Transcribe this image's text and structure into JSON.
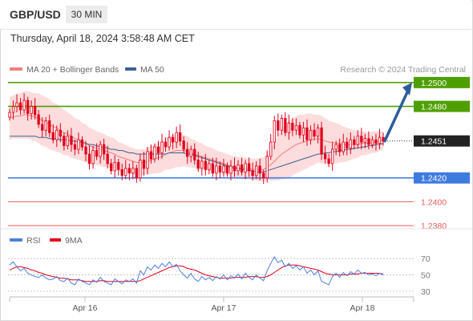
{
  "header": {
    "symbol": "GBP/USD",
    "timeframe": "30 MIN"
  },
  "datetime": "Thursday, April 18, 2024 3:58:48 AM CET",
  "legend": {
    "ma20": "MA 20 + Bollinger Bands",
    "ma50": "MA 50",
    "copyright": "Research © 2024 Trading Central"
  },
  "colors": {
    "candle": "#e0001b",
    "ma20": "#f07f7f",
    "ma50": "#3f5f96",
    "band_fill": "#fcdcdc",
    "resistance": "#4f9f00",
    "pivot": "#3e7be0",
    "support": "#f05a5a",
    "arrow": "#2c5d9a",
    "rsi": "#4f7fdf",
    "rsi_ma": "#e0001b"
  },
  "chart_data": [
    {
      "type": "candlestick",
      "ylim": [
        1.237,
        1.251
      ],
      "x_ticks": [
        "Apr 16",
        "Apr 17",
        "Apr 18"
      ],
      "levels": [
        {
          "value": 1.25,
          "label": "1.2500",
          "kind": "resistance"
        },
        {
          "value": 1.248,
          "label": "1.2480",
          "kind": "resistance"
        },
        {
          "value": 1.242,
          "label": "1.2420",
          "kind": "pivot"
        },
        {
          "value": 1.24,
          "label": "1.2400",
          "kind": "support"
        },
        {
          "value": 1.238,
          "label": "1.2380",
          "kind": "support"
        }
      ],
      "last_price": {
        "value": 1.2451,
        "label": "1.2451"
      },
      "projection": {
        "from": 1.2451,
        "to": 1.25
      },
      "legend": [
        "MA 20 + Bollinger Bands",
        "MA 50"
      ],
      "closes": [
        1.2475,
        1.248,
        1.2483,
        1.2477,
        1.2485,
        1.2474,
        1.248,
        1.2473,
        1.2465,
        1.246,
        1.2468,
        1.2458,
        1.2452,
        1.246,
        1.2455,
        1.2447,
        1.2455,
        1.2448,
        1.2444,
        1.2452,
        1.2446,
        1.244,
        1.2432,
        1.2443,
        1.2438,
        1.2448,
        1.244,
        1.2432,
        1.2426,
        1.2433,
        1.2427,
        1.2422,
        1.2428,
        1.2424,
        1.2428,
        1.242,
        1.2435,
        1.2428,
        1.2442,
        1.2436,
        1.2446,
        1.2441,
        1.245,
        1.2446,
        1.2454,
        1.245,
        1.2458,
        1.2451,
        1.2444,
        1.2438,
        1.2444,
        1.2435,
        1.2428,
        1.2434,
        1.2427,
        1.2432,
        1.2424,
        1.243,
        1.2425,
        1.243,
        1.2424,
        1.243,
        1.2426,
        1.2431,
        1.2425,
        1.2432,
        1.2426,
        1.2422,
        1.243,
        1.2424,
        1.242,
        1.2438,
        1.245,
        1.2468,
        1.246,
        1.247,
        1.2458,
        1.2466,
        1.246,
        1.2464,
        1.2456,
        1.2462,
        1.2452,
        1.246,
        1.2455,
        1.2462,
        1.244,
        1.2436,
        1.2432,
        1.2444,
        1.2448,
        1.2442,
        1.245,
        1.2445,
        1.2452,
        1.2448,
        1.2455,
        1.245,
        1.2453,
        1.2448,
        1.2452,
        1.2449,
        1.2454,
        1.2451
      ],
      "ma20": [
        1.247,
        1.2471,
        1.2472,
        1.2472,
        1.2473,
        1.2473,
        1.2472,
        1.2471,
        1.247,
        1.2468,
        1.2467,
        1.2465,
        1.2463,
        1.2462,
        1.246,
        1.2458,
        1.2457,
        1.2455,
        1.2453,
        1.2452,
        1.245,
        1.2449,
        1.2447,
        1.2446,
        1.2445,
        1.2444,
        1.2443,
        1.2442,
        1.2441,
        1.244,
        1.2438,
        1.2437,
        1.2436,
        1.2435,
        1.2434,
        1.2433,
        1.2433,
        1.2433,
        1.2434,
        1.2435,
        1.2436,
        1.2437,
        1.2438,
        1.244,
        1.2441,
        1.2442,
        1.2443,
        1.2443,
        1.2443,
        1.2442,
        1.2441,
        1.244,
        1.2439,
        1.2438,
        1.2437,
        1.2436,
        1.2435,
        1.2434,
        1.2433,
        1.2432,
        1.2431,
        1.243,
        1.2429,
        1.2429,
        1.2428,
        1.2428,
        1.2428,
        1.2427,
        1.2427,
        1.2427,
        1.2427,
        1.2429,
        1.2431,
        1.2434,
        1.2437,
        1.244,
        1.2442,
        1.2444,
        1.2446,
        1.2448,
        1.2449,
        1.245,
        1.2451,
        1.2452,
        1.2452,
        1.2453,
        1.2452,
        1.2451,
        1.245,
        1.245,
        1.2449,
        1.2449,
        1.2448,
        1.2448,
        1.2448,
        1.2448,
        1.2448,
        1.2449,
        1.2449,
        1.2449,
        1.245,
        1.245,
        1.2451,
        1.2451
      ],
      "ma50": [
        1.2455,
        1.2455,
        1.2455,
        1.2455,
        1.2455,
        1.2455,
        1.2455,
        1.2455,
        1.2454,
        1.2454,
        1.2454,
        1.2453,
        1.2453,
        1.2453,
        1.2452,
        1.2452,
        1.2452,
        1.2451,
        1.2451,
        1.245,
        1.245,
        1.2449,
        1.2448,
        1.2448,
        1.2447,
        1.2446,
        1.2446,
        1.2445,
        1.2444,
        1.2444,
        1.2443,
        1.2443,
        1.2442,
        1.2441,
        1.2441,
        1.244,
        1.244,
        1.244,
        1.244,
        1.244,
        1.244,
        1.244,
        1.244,
        1.244,
        1.2441,
        1.2441,
        1.2441,
        1.2441,
        1.2441,
        1.244,
        1.244,
        1.2439,
        1.2438,
        1.2437,
        1.2436,
        1.2435,
        1.2434,
        1.2433,
        1.2432,
        1.2431,
        1.243,
        1.2429,
        1.2428,
        1.2428,
        1.2427,
        1.2427,
        1.2426,
        1.2426,
        1.2425,
        1.2425,
        1.2425,
        1.2426,
        1.2427,
        1.2428,
        1.2429,
        1.243,
        1.2431,
        1.2432,
        1.2433,
        1.2434,
        1.2435,
        1.2436,
        1.2437,
        1.2438,
        1.2439,
        1.244,
        1.244,
        1.2441,
        1.2441,
        1.2442,
        1.2442,
        1.2443,
        1.2443,
        1.2444,
        1.2444,
        1.2445,
        1.2445,
        1.2446,
        1.2446,
        1.2447,
        1.2447,
        1.2448,
        1.2448,
        1.2449
      ],
      "band_width": [
        0.0018,
        0.0018,
        0.0019,
        0.0019,
        0.002,
        0.002,
        0.002,
        0.002,
        0.0021,
        0.0021,
        0.0021,
        0.0021,
        0.002,
        0.002,
        0.0019,
        0.0019,
        0.0018,
        0.0018,
        0.0017,
        0.0017,
        0.0016,
        0.0016,
        0.0015,
        0.0015,
        0.0014,
        0.0014,
        0.0014,
        0.0013,
        0.0013,
        0.0013,
        0.0012,
        0.0012,
        0.0012,
        0.0011,
        0.0011,
        0.0011,
        0.0011,
        0.0011,
        0.0011,
        0.0012,
        0.0012,
        0.0013,
        0.0013,
        0.0013,
        0.0014,
        0.0014,
        0.0014,
        0.0014,
        0.0013,
        0.0013,
        0.0012,
        0.0012,
        0.0011,
        0.0011,
        0.001,
        0.001,
        0.001,
        0.0009,
        0.0009,
        0.0009,
        0.0009,
        0.0009,
        0.0009,
        0.0009,
        0.0009,
        0.0009,
        0.0009,
        0.0009,
        0.0009,
        0.001,
        0.001,
        0.0011,
        0.0013,
        0.0016,
        0.0019,
        0.0021,
        0.0023,
        0.0024,
        0.0024,
        0.0024,
        0.0024,
        0.0023,
        0.0023,
        0.0022,
        0.0021,
        0.002,
        0.002,
        0.0019,
        0.0018,
        0.0017,
        0.0017,
        0.0016,
        0.0015,
        0.0014,
        0.0013,
        0.0012,
        0.0011,
        0.001,
        0.001,
        0.0009,
        0.0009,
        0.0009,
        0.0008,
        0.0008
      ]
    },
    {
      "type": "line",
      "legend": [
        "RSI",
        "9MA"
      ],
      "ylim": [
        25,
        80
      ],
      "y_ticks": [
        30,
        50,
        70
      ],
      "rsi": [
        62,
        66,
        60,
        55,
        58,
        52,
        50,
        48,
        47,
        50,
        46,
        44,
        45,
        48,
        43,
        42,
        46,
        40,
        38,
        45,
        42,
        40,
        38,
        44,
        41,
        47,
        42,
        40,
        38,
        45,
        42,
        39,
        44,
        42,
        45,
        40,
        55,
        50,
        60,
        56,
        62,
        58,
        64,
        60,
        66,
        60,
        63,
        55,
        50,
        46,
        52,
        45,
        42,
        48,
        44,
        47,
        43,
        48,
        45,
        50,
        44,
        49,
        46,
        51,
        45,
        52,
        47,
        44,
        50,
        46,
        43,
        55,
        64,
        72,
        65,
        68,
        60,
        64,
        58,
        61,
        56,
        60,
        52,
        56,
        50,
        55,
        42,
        40,
        38,
        48,
        52,
        47,
        53,
        49,
        54,
        51,
        56,
        52,
        53,
        50,
        51,
        49,
        52,
        50
      ],
      "ma9": [
        56,
        58,
        60,
        60,
        59,
        58,
        56,
        55,
        53,
        52,
        50,
        49,
        48,
        47,
        46,
        46,
        45,
        44,
        44,
        44,
        43,
        42,
        42,
        42,
        42,
        43,
        43,
        42,
        42,
        42,
        42,
        42,
        42,
        42,
        42,
        42,
        43,
        45,
        47,
        49,
        51,
        53,
        55,
        57,
        59,
        60,
        61,
        61,
        60,
        58,
        57,
        56,
        54,
        52,
        50,
        49,
        48,
        47,
        46,
        46,
        46,
        46,
        47,
        47,
        47,
        47,
        48,
        48,
        48,
        47,
        47,
        48,
        50,
        53,
        56,
        59,
        61,
        62,
        62,
        62,
        61,
        60,
        59,
        58,
        57,
        56,
        54,
        52,
        51,
        50,
        50,
        50,
        50,
        50,
        51,
        51,
        51,
        52,
        52,
        52,
        52,
        52,
        52,
        51
      ]
    }
  ]
}
